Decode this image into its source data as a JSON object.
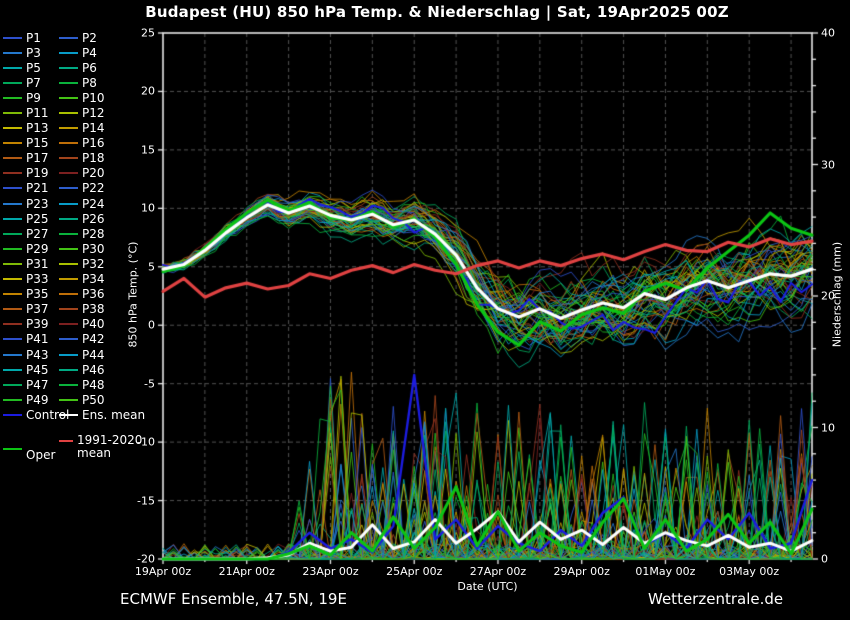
{
  "title": "Budapest  (HU)  850 hPa Temp. & Niederschlag | Sat, 19Apr2025 00Z",
  "footer": {
    "left": "ECMWF Ensemble, 47.5N, 19E",
    "right": "Wetterzentrale.de"
  },
  "colors": {
    "background": "#000000",
    "axis": "#e8e8e8",
    "grid": "#525252",
    "control": "#1c1ce0",
    "ens_mean": "#ffffff",
    "climate_mean": "#e04242",
    "oper": "#0cc414",
    "palette": [
      "#2e50cc",
      "#2e5ecc",
      "#2478cc",
      "#089cc8",
      "#00a8aa",
      "#00aa84",
      "#00a85a",
      "#0ab23c",
      "#22bb22",
      "#44c315",
      "#7fba06",
      "#a9c000",
      "#c4ba00",
      "#c29c00",
      "#c28300",
      "#bf6f08",
      "#b25a14",
      "#a2441c",
      "#8f2f20",
      "#7c2020"
    ]
  },
  "legend": {
    "members": [
      "P1",
      "P2",
      "P3",
      "P4",
      "P5",
      "P6",
      "P7",
      "P8",
      "P9",
      "P10",
      "P11",
      "P12",
      "P13",
      "P14",
      "P15",
      "P16",
      "P17",
      "P18",
      "P19",
      "P20",
      "P21",
      "P22",
      "P23",
      "P24",
      "P25",
      "P26",
      "P27",
      "P28",
      "P29",
      "P30",
      "P31",
      "P32",
      "P33",
      "P34",
      "P35",
      "P36",
      "P37",
      "P38",
      "P39",
      "P40",
      "P41",
      "P42",
      "P43",
      "P44",
      "P45",
      "P46",
      "P47",
      "P48",
      "P49",
      "P50"
    ],
    "control_label": "Control",
    "ens_mean_label": "Ens. mean",
    "climate_label_line1": "1991-2020",
    "climate_label_line2": "mean",
    "oper_label": "Oper"
  },
  "chart_data": {
    "type": "line",
    "title": "Budapest (HU) 850 hPa Temp. & Niederschlag | Sat, 19Apr2025 00Z",
    "xlabel": "Date (UTC)",
    "ylabel_left": "850 hPa Temp. (°C)",
    "ylabel_right": "Niederschlag (mm)",
    "x_range_days": [
      0,
      15.5
    ],
    "x_tick_days": [
      0,
      2,
      4,
      6,
      8,
      10,
      12,
      14
    ],
    "x_tick_labels": [
      "19Apr 00z",
      "21Apr 00z",
      "23Apr 00z",
      "25Apr 00z",
      "27Apr 00z",
      "29Apr 00z",
      "01May 00z",
      "03May 00z"
    ],
    "y_left_range": [
      -20,
      25
    ],
    "y_left_ticks": [
      25,
      20,
      15,
      10,
      5,
      0,
      -5,
      -10,
      -15,
      -20
    ],
    "y_right_range": [
      0,
      40
    ],
    "y_right_ticks": [
      0,
      10,
      20,
      30,
      40
    ],
    "grid": true,
    "legend_position": "left",
    "step_hours": 12,
    "series": {
      "ens_mean_temp": [
        4.8,
        5.2,
        6.4,
        7.9,
        9.2,
        10.3,
        9.6,
        10.2,
        9.4,
        9.0,
        9.5,
        8.6,
        9.0,
        7.8,
        6.0,
        3.2,
        1.4,
        0.7,
        1.4,
        0.6,
        1.3,
        1.9,
        1.5,
        2.7,
        2.2,
        3.2,
        3.8,
        3.2,
        3.8,
        4.4,
        4.2,
        4.8
      ],
      "climate_mean_temp": [
        2.9,
        4.0,
        2.4,
        3.2,
        3.6,
        3.1,
        3.4,
        4.4,
        4.0,
        4.7,
        5.1,
        4.5,
        5.2,
        4.7,
        4.4,
        5.1,
        5.5,
        4.9,
        5.5,
        5.1,
        5.7,
        6.1,
        5.6,
        6.3,
        6.9,
        6.4,
        6.3,
        7.1,
        6.7,
        7.4,
        6.9,
        7.2
      ],
      "oper_temp": [
        4.6,
        5.1,
        6.6,
        8.2,
        9.6,
        10.7,
        9.8,
        10.5,
        9.2,
        9.0,
        9.7,
        8.4,
        9.1,
        7.5,
        5.2,
        1.8,
        -0.6,
        -1.7,
        0.3,
        -0.5,
        0.9,
        1.5,
        1.0,
        2.9,
        3.6,
        3.0,
        4.9,
        6.3,
        7.7,
        9.6,
        8.3,
        7.7
      ],
      "ens_mean_precip": [
        0,
        0,
        0,
        0,
        0,
        0.1,
        0.3,
        1.2,
        0.6,
        0.9,
        2.6,
        0.8,
        1.3,
        3.0,
        1.2,
        2.3,
        3.6,
        1.3,
        2.8,
        1.5,
        2.2,
        1.1,
        2.4,
        1.2,
        2.0,
        1.4,
        1.0,
        1.8,
        0.9,
        1.2,
        0.6,
        1.4
      ],
      "oper_precip": [
        0,
        0,
        0,
        0,
        0,
        0,
        0.4,
        1.0,
        0.3,
        2.0,
        0.6,
        3.2,
        0.8,
        2.4,
        5.5,
        1.0,
        3.6,
        0.6,
        2.0,
        1.0,
        0.5,
        2.8,
        4.6,
        0.8,
        3.0,
        0.6,
        1.5,
        3.4,
        1.2,
        2.8,
        0.4,
        3.8
      ],
      "control_precip": [
        0,
        0,
        0,
        0,
        0,
        0,
        0.5,
        2.0,
        0.8,
        1.5,
        0.5,
        2.5,
        14,
        1.5,
        3.0,
        0.8,
        2.5,
        1.2,
        0.6,
        2.2,
        1.0,
        3.5,
        4.7,
        1.0,
        2.0,
        0.8,
        3.0,
        1.5,
        3.5,
        0.8,
        1.2,
        6.0
      ]
    },
    "ensemble_generation": {
      "seed": 12,
      "n_members": 50,
      "temp_spread": [
        0.3,
        0.4,
        0.5,
        0.6,
        0.7,
        0.8,
        1.0,
        1.1,
        1.3,
        1.3,
        1.5,
        1.6,
        1.8,
        2.0,
        2.4,
        2.9,
        3.3,
        3.5,
        3.6,
        3.6,
        3.5,
        3.5,
        3.5,
        3.5,
        3.6,
        3.6,
        3.7,
        3.8,
        3.9,
        4.0,
        4.0,
        4.0
      ],
      "precip_max": [
        0,
        0,
        0,
        0,
        0,
        0,
        2,
        8,
        14,
        15,
        9,
        12,
        9,
        14,
        13,
        12,
        11,
        13,
        12,
        11,
        12,
        13,
        11,
        12,
        10,
        11,
        12,
        10,
        11,
        12,
        11,
        13
      ],
      "precip_wet_prob": [
        0,
        0,
        0,
        0,
        0,
        0.05,
        0.3,
        0.45,
        0.5,
        0.5,
        0.5,
        0.5,
        0.5,
        0.55,
        0.55,
        0.5,
        0.5,
        0.5,
        0.5,
        0.5,
        0.5,
        0.5,
        0.5,
        0.5,
        0.45,
        0.45,
        0.45,
        0.45,
        0.45,
        0.45,
        0.45,
        0.5
      ]
    }
  }
}
